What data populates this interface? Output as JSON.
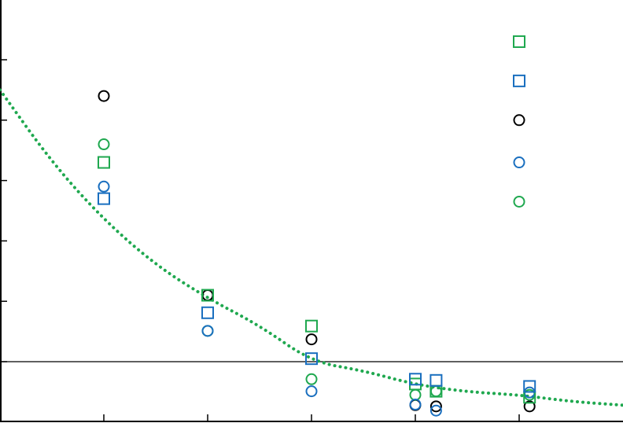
{
  "chart_data": {
    "type": "scatter",
    "title": "",
    "xlabel": "",
    "ylabel": "",
    "x_tick_labels": [],
    "y_tick_labels": [],
    "xlim": [
      0,
      6
    ],
    "ylim": [
      -1,
      6
    ],
    "grid": false,
    "legend": "none",
    "reference_line_y": 0,
    "series": [
      {
        "marker": "circle",
        "color": "#000000",
        "points": [
          [
            1.0,
            4.4
          ],
          [
            2.0,
            1.1
          ],
          [
            3.0,
            0.37
          ],
          [
            4.0,
            -0.72
          ],
          [
            4.2,
            -0.74
          ],
          [
            5.0,
            4.0
          ],
          [
            5.1,
            -0.74
          ]
        ]
      },
      {
        "marker": "circle",
        "color": "#1fa84f",
        "points": [
          [
            1.0,
            3.6
          ],
          [
            2.0,
            0.51
          ],
          [
            3.0,
            -0.29
          ],
          [
            4.0,
            -0.55
          ],
          [
            4.2,
            -0.49
          ],
          [
            5.0,
            2.65
          ],
          [
            5.1,
            -0.55
          ]
        ]
      },
      {
        "marker": "circle",
        "color": "#1a6fbf",
        "points": [
          [
            1.0,
            2.9
          ],
          [
            2.0,
            0.51
          ],
          [
            3.0,
            -0.49
          ],
          [
            4.0,
            -0.71
          ],
          [
            4.2,
            -0.81
          ],
          [
            5.0,
            3.3
          ],
          [
            5.1,
            -0.51
          ]
        ]
      },
      {
        "marker": "square",
        "color": "#1fa84f",
        "points": [
          [
            1.0,
            3.3
          ],
          [
            2.0,
            1.1
          ],
          [
            3.0,
            0.59
          ],
          [
            4.0,
            -0.37
          ],
          [
            4.2,
            -0.49
          ],
          [
            5.0,
            5.3
          ],
          [
            5.1,
            -0.59
          ]
        ]
      },
      {
        "marker": "square",
        "color": "#1a6fbf",
        "points": [
          [
            1.0,
            2.7
          ],
          [
            2.0,
            0.81
          ],
          [
            3.0,
            0.05
          ],
          [
            4.0,
            -0.29
          ],
          [
            4.2,
            -0.31
          ],
          [
            5.0,
            4.65
          ],
          [
            5.1,
            -0.41
          ]
        ]
      }
    ],
    "trend": {
      "style": "dotted",
      "color": "#1fa84f",
      "points": [
        [
          0.0,
          4.5
        ],
        [
          0.5,
          3.3
        ],
        [
          1.0,
          2.35
        ],
        [
          1.5,
          1.6
        ],
        [
          2.0,
          1.05
        ],
        [
          2.5,
          0.6
        ],
        [
          3.0,
          0.0
        ],
        [
          3.5,
          -0.15
        ],
        [
          4.0,
          -0.38
        ],
        [
          4.5,
          -0.5
        ],
        [
          5.0,
          -0.55
        ],
        [
          5.5,
          -0.66
        ],
        [
          6.0,
          -0.72
        ]
      ]
    }
  }
}
